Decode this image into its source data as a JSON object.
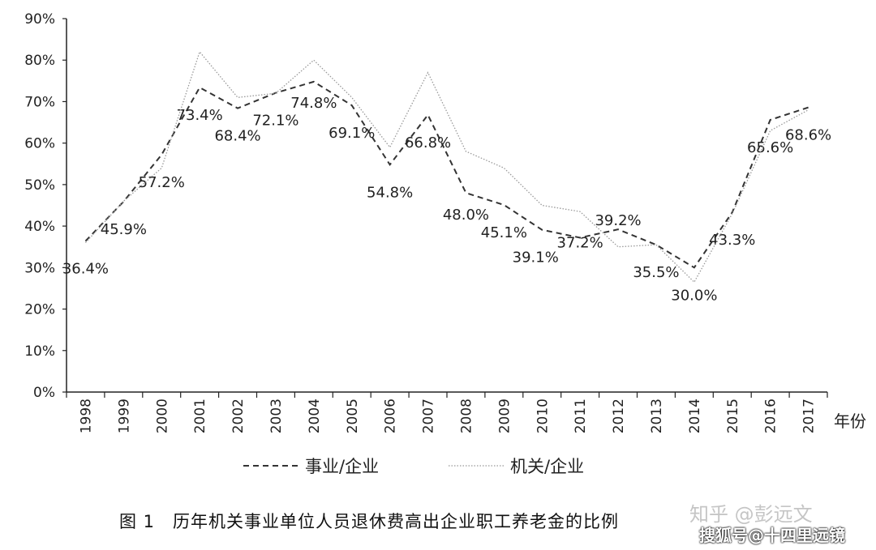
{
  "chart_data": {
    "type": "line",
    "title": "",
    "xlabel": "年份",
    "ylabel": "",
    "ylim": [
      0,
      90
    ],
    "y_ticks": [
      "0%",
      "10%",
      "20%",
      "30%",
      "40%",
      "50%",
      "60%",
      "70%",
      "80%",
      "90%"
    ],
    "categories": [
      "1998",
      "1999",
      "2000",
      "2001",
      "2002",
      "2003",
      "2004",
      "2005",
      "2006",
      "2007",
      "2008",
      "2009",
      "2010",
      "2011",
      "2012",
      "2013",
      "2014",
      "2015",
      "2016",
      "2017"
    ],
    "series": [
      {
        "name": "事业/企业",
        "style": "dashed",
        "color": "#333333",
        "values": [
          36.4,
          45.9,
          57.2,
          73.4,
          68.4,
          72.1,
          74.8,
          69.1,
          54.8,
          66.8,
          48.0,
          45.1,
          39.1,
          37.2,
          39.2,
          35.5,
          30.0,
          43.3,
          65.6,
          68.6
        ],
        "labels": [
          "36.4%",
          "45.9%",
          "57.2%",
          "73.4%",
          "68.4%",
          "72.1%",
          "74.8%",
          "69.1%",
          "54.8%",
          "66.8%",
          "48.0%",
          "45.1%",
          "39.1%",
          "37.2%",
          "39.2%",
          "35.5%",
          "30.0%",
          "43.3%",
          "65.6%",
          "68.6%"
        ]
      },
      {
        "name": "机关/企业",
        "style": "dotted",
        "color": "#999999",
        "values": [
          36,
          46,
          54,
          82,
          71,
          72,
          80,
          71,
          59,
          77,
          58,
          54,
          45,
          43.5,
          35,
          35.5,
          26.5,
          43,
          63,
          68
        ]
      }
    ],
    "grid": false,
    "legend": "bottom"
  },
  "caption": "图 1　历年机关事业单位人员退休费高出企业职工养老金的比例",
  "watermarks": [
    "知乎 @彭远文",
    "搜狐号@十四里远镜"
  ]
}
